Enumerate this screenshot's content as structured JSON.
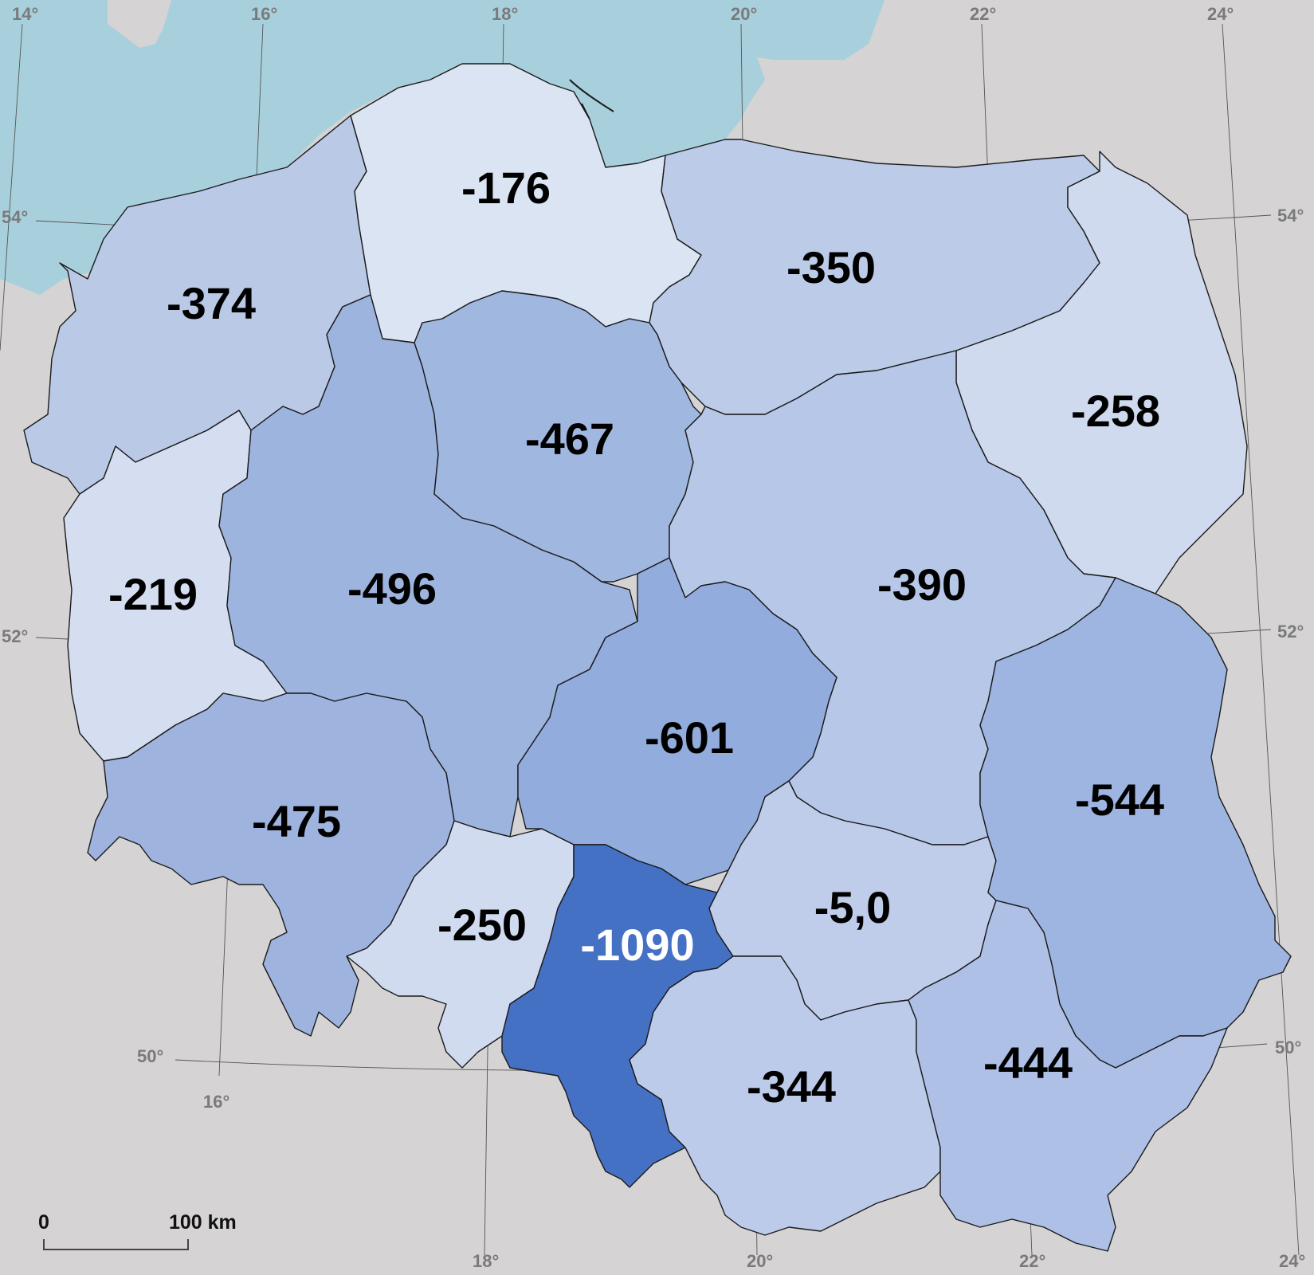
{
  "map": {
    "sea_color": "#a8d0dc",
    "land_color": "#d5d3d3",
    "regions": [
      {
        "id": "zachodniopomorskie",
        "value": "-374",
        "fill": "#b9c9e6",
        "text_color": "#000000"
      },
      {
        "id": "pomorskie",
        "value": "-176",
        "fill": "#dbe4f3",
        "text_color": "#000000"
      },
      {
        "id": "warminsko-mazurskie",
        "value": "-350",
        "fill": "#bccbe8",
        "text_color": "#000000"
      },
      {
        "id": "podlaskie",
        "value": "-258",
        "fill": "#cfdaef",
        "text_color": "#000000"
      },
      {
        "id": "lubuskie",
        "value": "-219",
        "fill": "#d4def0",
        "text_color": "#000000"
      },
      {
        "id": "wielkopolskie",
        "value": "-496",
        "fill": "#9db4de",
        "text_color": "#000000"
      },
      {
        "id": "kujawsko-pomorskie",
        "value": "-467",
        "fill": "#a0b7df",
        "text_color": "#000000"
      },
      {
        "id": "mazowieckie",
        "value": "-390",
        "fill": "#b6c7e8",
        "text_color": "#000000"
      },
      {
        "id": "lodzkie",
        "value": "-601",
        "fill": "#91acdd",
        "text_color": "#000000"
      },
      {
        "id": "dolnoslaskie",
        "value": "-475",
        "fill": "#9eb4df",
        "text_color": "#000000"
      },
      {
        "id": "opolskie",
        "value": "-250",
        "fill": "#d0dbf0",
        "text_color": "#000000"
      },
      {
        "id": "slaskie",
        "value": "-1090",
        "fill": "#4571c4",
        "text_color": "#ffffff"
      },
      {
        "id": "swietokrzyskie",
        "value": "-5,0",
        "fill": "#bfcdea",
        "text_color": "#000000"
      },
      {
        "id": "lubelskie",
        "value": "-544",
        "fill": "#9db5e0",
        "text_color": "#000000"
      },
      {
        "id": "malopolskie",
        "value": "-344",
        "fill": "#bdcbea",
        "text_color": "#000000"
      },
      {
        "id": "podkarpackie",
        "value": "-444",
        "fill": "#aec0e5",
        "text_color": "#000000"
      }
    ],
    "graticule_labels": {
      "lon_top": [
        "14°",
        "16°",
        "18°",
        "20°",
        "22°",
        "24°"
      ],
      "lon_bottom": [
        "16°",
        "18°",
        "20°",
        "22°",
        "24°"
      ],
      "lat_left": [
        "54°",
        "52°",
        "50°"
      ],
      "lat_right": [
        "54°",
        "52°",
        "50°"
      ]
    },
    "scale_bar": {
      "start_label": "0",
      "end_label": "100 km"
    }
  }
}
